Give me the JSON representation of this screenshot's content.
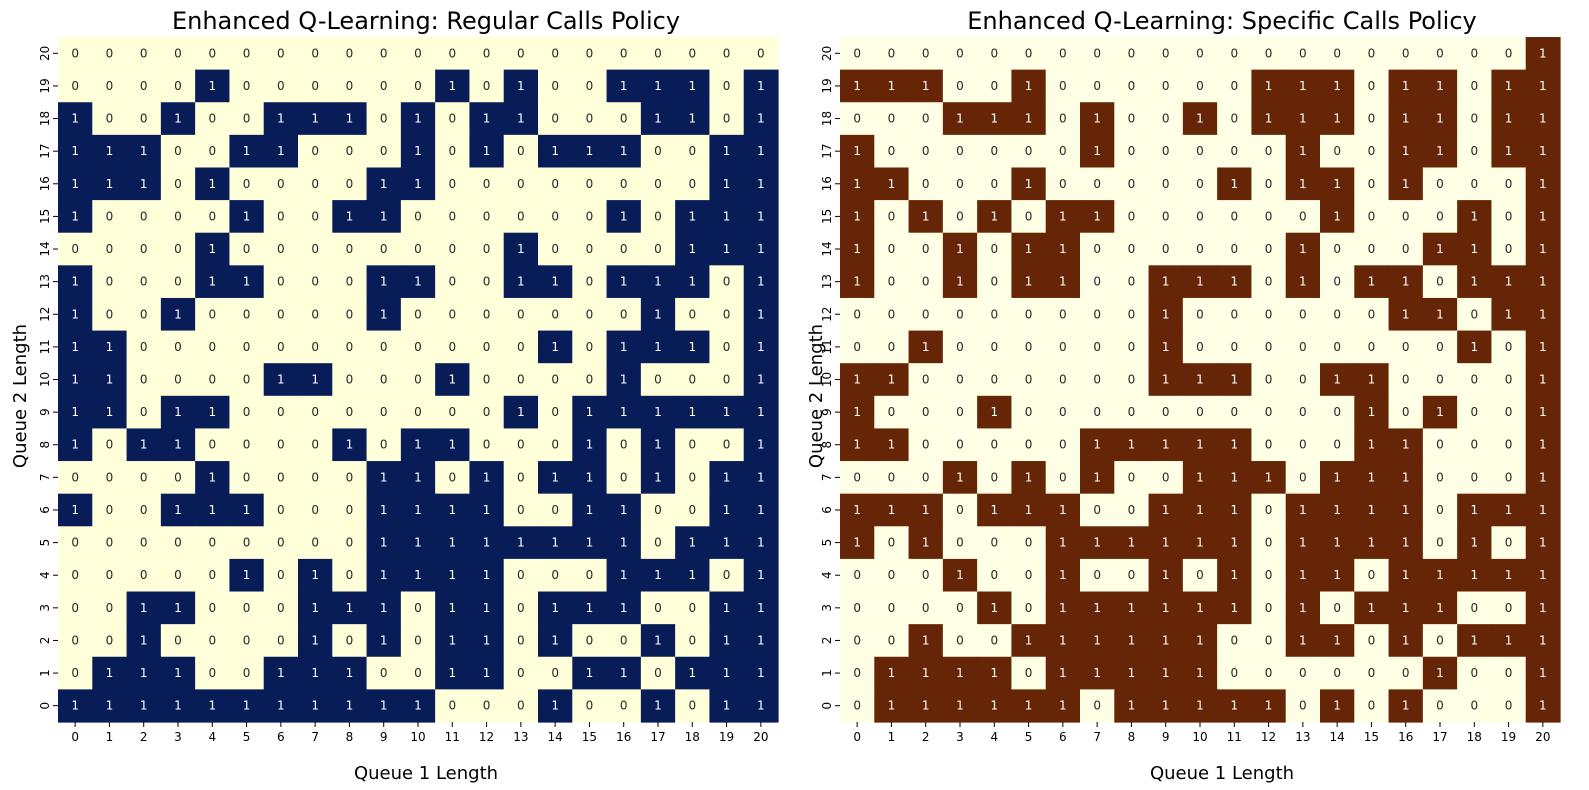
{
  "chart_data": [
    {
      "type": "heatmap",
      "title": "Enhanced Q-Learning: Regular Calls Policy",
      "xlabel": "Queue 1 Length",
      "ylabel": "Queue 2 Length",
      "x_ticks": [
        "0",
        "1",
        "2",
        "3",
        "4",
        "5",
        "6",
        "7",
        "8",
        "9",
        "10",
        "11",
        "12",
        "13",
        "14",
        "15",
        "16",
        "17",
        "18",
        "19",
        "20"
      ],
      "y_ticks": [
        "20",
        "19",
        "18",
        "17",
        "16",
        "15",
        "14",
        "13",
        "12",
        "11",
        "10",
        "9",
        "8",
        "7",
        "6",
        "5",
        "4",
        "3",
        "2",
        "1",
        "0"
      ],
      "colors": {
        "0": "#ffffd9",
        "1": "#081d58"
      },
      "text_colors": {
        "0": "#262626",
        "1": "#ffffff"
      },
      "annotations": true,
      "colorbar": false,
      "rows": [
        [
          0,
          0,
          0,
          0,
          0,
          0,
          0,
          0,
          0,
          0,
          0,
          0,
          0,
          0,
          0,
          0,
          0,
          0,
          0,
          0,
          0
        ],
        [
          0,
          0,
          0,
          0,
          1,
          0,
          0,
          0,
          0,
          0,
          0,
          1,
          0,
          1,
          0,
          0,
          1,
          1,
          1,
          0,
          1
        ],
        [
          1,
          0,
          0,
          1,
          0,
          0,
          1,
          1,
          1,
          0,
          1,
          0,
          1,
          1,
          0,
          0,
          0,
          1,
          1,
          0,
          1
        ],
        [
          1,
          1,
          1,
          0,
          0,
          1,
          1,
          0,
          0,
          0,
          1,
          0,
          1,
          0,
          1,
          1,
          1,
          0,
          0,
          1,
          1
        ],
        [
          1,
          1,
          1,
          0,
          1,
          0,
          0,
          0,
          0,
          1,
          1,
          0,
          0,
          0,
          0,
          0,
          0,
          0,
          0,
          1,
          1
        ],
        [
          1,
          0,
          0,
          0,
          0,
          1,
          0,
          0,
          1,
          1,
          0,
          0,
          0,
          0,
          0,
          0,
          1,
          0,
          1,
          1,
          1
        ],
        [
          0,
          0,
          0,
          0,
          1,
          0,
          0,
          0,
          0,
          0,
          0,
          0,
          0,
          1,
          0,
          0,
          0,
          0,
          1,
          1,
          1
        ],
        [
          1,
          0,
          0,
          0,
          1,
          1,
          0,
          0,
          0,
          1,
          1,
          0,
          0,
          1,
          1,
          0,
          1,
          1,
          1,
          0,
          1
        ],
        [
          1,
          0,
          0,
          1,
          0,
          0,
          0,
          0,
          0,
          1,
          0,
          0,
          0,
          0,
          0,
          0,
          0,
          1,
          0,
          0,
          1
        ],
        [
          1,
          1,
          0,
          0,
          0,
          0,
          0,
          0,
          0,
          0,
          0,
          0,
          0,
          0,
          1,
          0,
          1,
          1,
          1,
          0,
          1
        ],
        [
          1,
          1,
          0,
          0,
          0,
          0,
          1,
          1,
          0,
          0,
          0,
          1,
          0,
          0,
          0,
          0,
          1,
          0,
          0,
          0,
          1
        ],
        [
          1,
          1,
          0,
          1,
          1,
          0,
          0,
          0,
          0,
          0,
          0,
          0,
          0,
          1,
          0,
          1,
          1,
          1,
          1,
          1,
          1
        ],
        [
          1,
          0,
          1,
          1,
          0,
          0,
          0,
          0,
          1,
          0,
          1,
          1,
          0,
          0,
          0,
          1,
          0,
          1,
          0,
          0,
          1
        ],
        [
          0,
          0,
          0,
          0,
          1,
          0,
          0,
          0,
          0,
          1,
          1,
          0,
          1,
          0,
          1,
          1,
          0,
          1,
          0,
          1,
          1
        ],
        [
          1,
          0,
          0,
          1,
          1,
          1,
          0,
          0,
          0,
          1,
          1,
          1,
          1,
          0,
          0,
          1,
          1,
          0,
          0,
          1,
          1
        ],
        [
          0,
          0,
          0,
          0,
          0,
          0,
          0,
          0,
          0,
          1,
          1,
          1,
          1,
          1,
          1,
          1,
          1,
          0,
          1,
          1,
          1
        ],
        [
          0,
          0,
          0,
          0,
          0,
          1,
          0,
          1,
          0,
          1,
          1,
          1,
          1,
          0,
          0,
          0,
          1,
          1,
          1,
          0,
          1
        ],
        [
          0,
          0,
          1,
          1,
          0,
          0,
          0,
          1,
          1,
          1,
          0,
          1,
          1,
          0,
          1,
          1,
          1,
          0,
          0,
          1,
          1
        ],
        [
          0,
          0,
          1,
          0,
          0,
          0,
          0,
          1,
          0,
          1,
          0,
          1,
          1,
          0,
          1,
          0,
          0,
          1,
          0,
          1,
          1
        ],
        [
          0,
          1,
          1,
          1,
          0,
          0,
          1,
          1,
          1,
          0,
          0,
          1,
          1,
          0,
          0,
          1,
          1,
          0,
          1,
          1,
          1
        ],
        [
          1,
          1,
          1,
          1,
          1,
          1,
          1,
          1,
          1,
          1,
          1,
          0,
          0,
          0,
          1,
          0,
          0,
          1,
          0,
          1,
          1
        ]
      ]
    },
    {
      "type": "heatmap",
      "title": "Enhanced Q-Learning: Specific Calls Policy",
      "xlabel": "Queue 1 Length",
      "ylabel": "Queue 2 Length",
      "x_ticks": [
        "0",
        "1",
        "2",
        "3",
        "4",
        "5",
        "6",
        "7",
        "8",
        "9",
        "10",
        "11",
        "12",
        "13",
        "14",
        "15",
        "16",
        "17",
        "18",
        "19",
        "20"
      ],
      "y_ticks": [
        "20",
        "19",
        "18",
        "17",
        "16",
        "15",
        "14",
        "13",
        "12",
        "11",
        "10",
        "9",
        "8",
        "7",
        "6",
        "5",
        "4",
        "3",
        "2",
        "1",
        "0"
      ],
      "colors": {
        "0": "#ffffe5",
        "1": "#662506"
      },
      "text_colors": {
        "0": "#262626",
        "1": "#ffffff"
      },
      "annotations": true,
      "colorbar": false,
      "rows": [
        [
          0,
          0,
          0,
          0,
          0,
          0,
          0,
          0,
          0,
          0,
          0,
          0,
          0,
          0,
          0,
          0,
          0,
          0,
          0,
          0,
          1
        ],
        [
          1,
          1,
          1,
          0,
          0,
          1,
          0,
          0,
          0,
          0,
          0,
          0,
          1,
          1,
          1,
          0,
          1,
          1,
          0,
          1,
          1
        ],
        [
          0,
          0,
          0,
          1,
          1,
          1,
          0,
          1,
          0,
          0,
          1,
          0,
          1,
          1,
          1,
          0,
          1,
          1,
          0,
          1,
          1
        ],
        [
          1,
          0,
          0,
          0,
          0,
          0,
          0,
          1,
          0,
          0,
          0,
          0,
          0,
          1,
          0,
          0,
          1,
          1,
          0,
          1,
          1
        ],
        [
          1,
          1,
          0,
          0,
          0,
          1,
          0,
          0,
          0,
          0,
          0,
          1,
          0,
          1,
          1,
          0,
          1,
          0,
          0,
          0,
          1
        ],
        [
          1,
          0,
          1,
          0,
          1,
          0,
          1,
          1,
          0,
          0,
          0,
          0,
          0,
          0,
          1,
          0,
          0,
          0,
          1,
          0,
          1
        ],
        [
          1,
          0,
          0,
          1,
          0,
          1,
          1,
          0,
          0,
          0,
          0,
          0,
          0,
          1,
          0,
          0,
          0,
          1,
          1,
          0,
          1
        ],
        [
          1,
          0,
          0,
          1,
          0,
          1,
          1,
          0,
          0,
          1,
          1,
          1,
          0,
          1,
          0,
          1,
          1,
          0,
          1,
          1,
          1
        ],
        [
          0,
          0,
          0,
          0,
          0,
          0,
          0,
          0,
          0,
          1,
          0,
          0,
          0,
          0,
          0,
          0,
          1,
          1,
          0,
          1,
          1
        ],
        [
          0,
          0,
          1,
          0,
          0,
          0,
          0,
          0,
          0,
          1,
          0,
          0,
          0,
          0,
          0,
          0,
          0,
          0,
          1,
          0,
          1
        ],
        [
          1,
          1,
          0,
          0,
          0,
          0,
          0,
          0,
          0,
          1,
          1,
          1,
          0,
          0,
          1,
          1,
          0,
          0,
          0,
          0,
          1
        ],
        [
          1,
          0,
          0,
          0,
          1,
          0,
          0,
          0,
          0,
          0,
          0,
          0,
          0,
          0,
          0,
          1,
          0,
          1,
          0,
          0,
          1
        ],
        [
          1,
          1,
          0,
          0,
          0,
          0,
          0,
          1,
          1,
          1,
          1,
          1,
          0,
          0,
          0,
          1,
          1,
          0,
          0,
          0,
          1
        ],
        [
          0,
          0,
          0,
          1,
          0,
          1,
          0,
          1,
          0,
          0,
          1,
          1,
          1,
          0,
          1,
          1,
          1,
          0,
          0,
          0,
          1
        ],
        [
          1,
          1,
          1,
          0,
          1,
          1,
          1,
          0,
          0,
          1,
          1,
          1,
          0,
          1,
          1,
          1,
          1,
          0,
          1,
          1,
          1
        ],
        [
          1,
          0,
          1,
          0,
          0,
          0,
          1,
          1,
          1,
          1,
          1,
          1,
          0,
          1,
          1,
          1,
          1,
          0,
          1,
          0,
          1
        ],
        [
          0,
          0,
          0,
          1,
          0,
          0,
          1,
          0,
          0,
          1,
          0,
          1,
          0,
          1,
          1,
          0,
          1,
          1,
          1,
          1,
          1
        ],
        [
          0,
          0,
          0,
          0,
          1,
          0,
          1,
          1,
          1,
          1,
          1,
          1,
          0,
          1,
          0,
          1,
          1,
          1,
          0,
          0,
          1
        ],
        [
          0,
          0,
          1,
          0,
          0,
          1,
          1,
          1,
          1,
          1,
          1,
          0,
          0,
          1,
          1,
          0,
          1,
          0,
          1,
          1,
          1
        ],
        [
          0,
          1,
          1,
          1,
          1,
          0,
          1,
          1,
          1,
          1,
          1,
          0,
          0,
          0,
          0,
          0,
          0,
          1,
          0,
          0,
          1
        ],
        [
          0,
          1,
          1,
          1,
          1,
          1,
          1,
          0,
          1,
          1,
          1,
          1,
          1,
          0,
          1,
          0,
          1,
          0,
          0,
          0,
          1
        ]
      ]
    }
  ]
}
